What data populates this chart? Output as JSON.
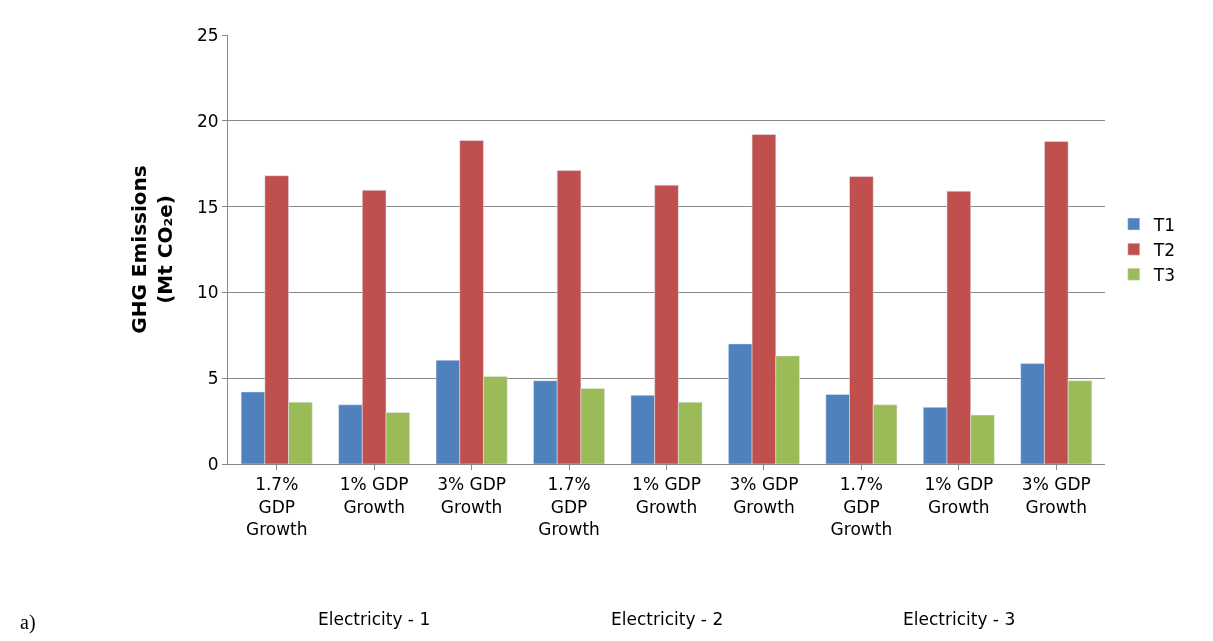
{
  "chart_data": {
    "type": "bar",
    "categories": [
      "1.7% GDP Growth",
      "1% GDP Growth",
      "3% GDP Growth",
      "1.7% GDP Growth",
      "1% GDP Growth",
      "3% GDP Growth",
      "1.7% GDP Growth",
      "1% GDP Growth",
      "3% GDP Growth"
    ],
    "series": [
      {
        "name": "T1",
        "color": "#4f81bd",
        "values": [
          4.2,
          3.45,
          6.05,
          4.85,
          4.0,
          7.0,
          4.05,
          3.3,
          5.85
        ]
      },
      {
        "name": "T2",
        "color": "#c0504d",
        "values": [
          16.8,
          15.95,
          18.85,
          17.1,
          16.25,
          19.2,
          16.75,
          15.9,
          18.8
        ]
      },
      {
        "name": "T3",
        "color": "#9bbb59",
        "values": [
          3.6,
          3.0,
          5.1,
          4.4,
          3.6,
          6.3,
          3.45,
          2.85,
          4.85
        ]
      }
    ],
    "ylabel": "GHG Emissions\n(Mt CO₂e)",
    "ylim": [
      0,
      25
    ],
    "yticks": [
      0,
      5,
      10,
      15,
      20,
      25
    ],
    "grid": "y",
    "legend": "right",
    "annotations": [
      "Electricity - 1",
      "Electricity - 2",
      "Electricity - 3",
      "a)"
    ]
  }
}
